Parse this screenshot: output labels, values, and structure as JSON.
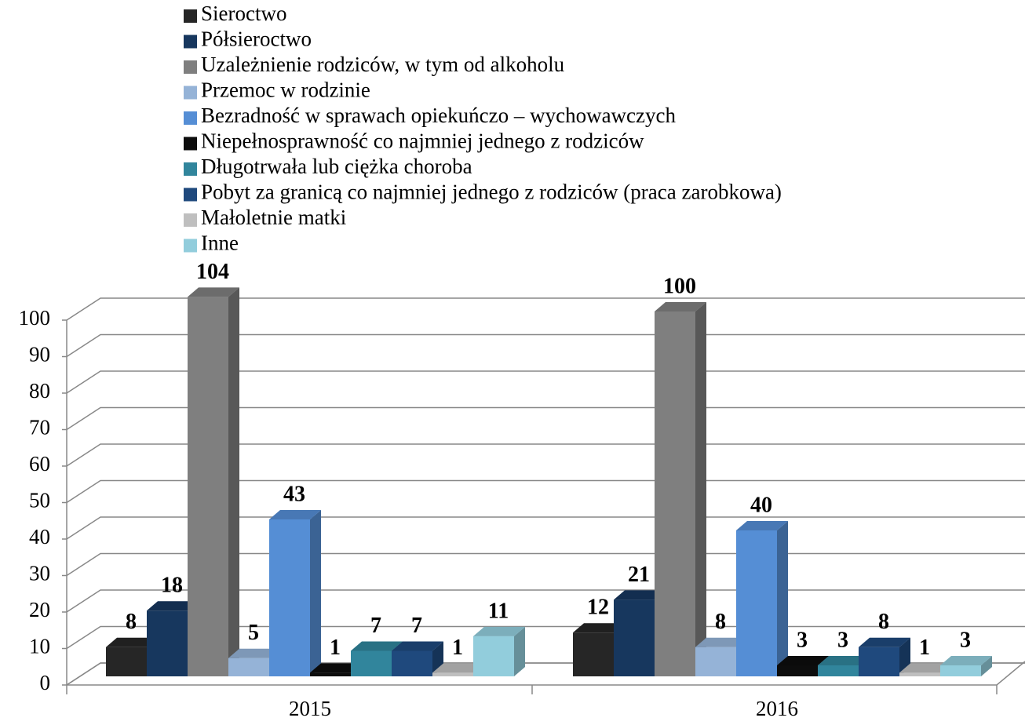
{
  "chart_data": {
    "type": "bar3d",
    "categories": [
      "2015",
      "2016"
    ],
    "series": [
      {
        "name": "Sieroctwo",
        "color": "#262626",
        "values": [
          8,
          12
        ]
      },
      {
        "name": "Półsieroctwo",
        "color": "#17375e",
        "values": [
          18,
          21
        ]
      },
      {
        "name": "Uzależnienie rodziców, w tym od alkoholu",
        "color": "#7f7f7f",
        "values": [
          104,
          100
        ]
      },
      {
        "name": "Przemoc w rodzinie",
        "color": "#95b3d7",
        "values": [
          5,
          8
        ]
      },
      {
        "name": "Bezradność w sprawach opiekuńczo – wychowawczych",
        "color": "#558ed5",
        "values": [
          43,
          40
        ]
      },
      {
        "name": "Niepełnosprawność co najmniej jednego z rodziców",
        "color": "#0d0d0d",
        "values": [
          1,
          3
        ]
      },
      {
        "name": "Długotrwała lub ciężka choroba",
        "color": "#31859c",
        "values": [
          7,
          3
        ]
      },
      {
        "name": "Pobyt za granicą co najmniej jednego z rodziców (praca zarobkowa)",
        "color": "#1f497d",
        "values": [
          7,
          8
        ]
      },
      {
        "name": "Małoletnie matki",
        "color": "#bfbfbf",
        "values": [
          1,
          1
        ]
      },
      {
        "name": "Inne",
        "color": "#92cddc",
        "values": [
          11,
          3
        ]
      }
    ],
    "ylim": [
      0,
      100
    ],
    "yticks": [
      0,
      10,
      20,
      30,
      40,
      50,
      60,
      70,
      80,
      90,
      100
    ],
    "grid": true,
    "legend": "top"
  }
}
